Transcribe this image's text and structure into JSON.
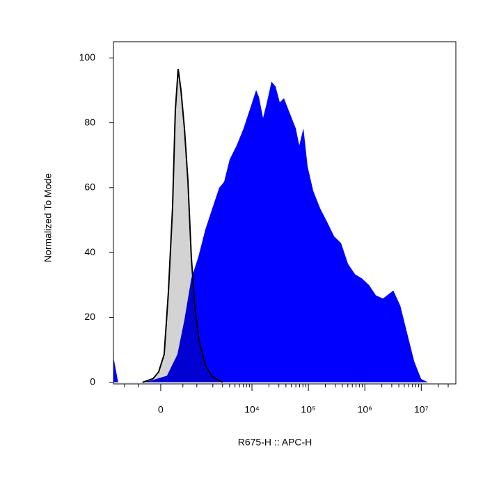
{
  "chart_data": {
    "type": "area",
    "xlabel": "R675-H :: APC-H",
    "ylabel": "Normalized To Mode",
    "xscale": "arcsinh",
    "xlim": [
      -1630,
      41000000
    ],
    "ylim": [
      -0.5,
      105
    ],
    "xticks": [
      0,
      {
        "value": 10000,
        "label": "10⁴"
      },
      {
        "value": 100000,
        "label": "10⁵"
      },
      {
        "value": 1000000,
        "label": "10⁶"
      },
      {
        "value": 10000000,
        "label": "10⁷"
      }
    ],
    "xminorticks": [
      -1000,
      -500,
      500,
      1000,
      2000,
      3000,
      4000,
      5000,
      6000,
      7000,
      8000,
      9000,
      20000,
      30000,
      40000,
      50000,
      60000,
      70000,
      80000,
      90000,
      200000,
      300000,
      400000,
      500000,
      600000,
      700000,
      800000,
      900000,
      2000000,
      3000000,
      4000000,
      5000000,
      6000000,
      7000000,
      8000000,
      9000000,
      20000000,
      30000000
    ],
    "yticks": [
      0,
      20,
      40,
      60,
      80,
      100
    ],
    "series": [
      {
        "color": "#0000ff",
        "x": [
          -1600,
          -1330,
          -483,
          -227,
          125,
          356,
          545,
          775,
          1068,
          1447,
          1952,
          2610,
          3195,
          4020,
          5350,
          7110,
          9450,
          11860,
          13260,
          15730,
          18150,
          22170,
          26280,
          31170,
          36930,
          45060,
          59870,
          69020,
          81800,
          97000,
          121800,
          161900,
          215100,
          286000,
          380000,
          505000,
          671000,
          891000,
          1184000,
          1573000,
          2091000,
          3199000,
          4254000,
          5653000,
          7512000,
          9980000,
          13260000
        ],
        "values": [
          7.1,
          0,
          0,
          0.4,
          2,
          8.6,
          19.3,
          32,
          38.6,
          47,
          53.6,
          60,
          61.8,
          68.7,
          73,
          78.3,
          84.8,
          90.1,
          88,
          81.5,
          85.8,
          92.7,
          91.2,
          86.3,
          87.6,
          83.7,
          78.3,
          73,
          78.3,
          66.5,
          59,
          53.6,
          49.4,
          45,
          42.9,
          36.5,
          33.3,
          32,
          30,
          26.8,
          25.8,
          28.3,
          23.6,
          15,
          6.4,
          1,
          0
        ]
      },
      {
        "color": "#d3d3d3",
        "edgecolor": "#000000",
        "x": [
          -390,
          -154,
          -41,
          69,
          154,
          243,
          306,
          374,
          446,
          545,
          653,
          775,
          910,
          1103,
          1447,
          1952,
          3015
        ],
        "values": [
          0,
          1.1,
          3.2,
          8.6,
          27.9,
          53.6,
          83.7,
          96.6,
          90.1,
          78.3,
          62.2,
          38.6,
          23.6,
          12.9,
          5.4,
          1.7,
          0
        ]
      }
    ]
  }
}
